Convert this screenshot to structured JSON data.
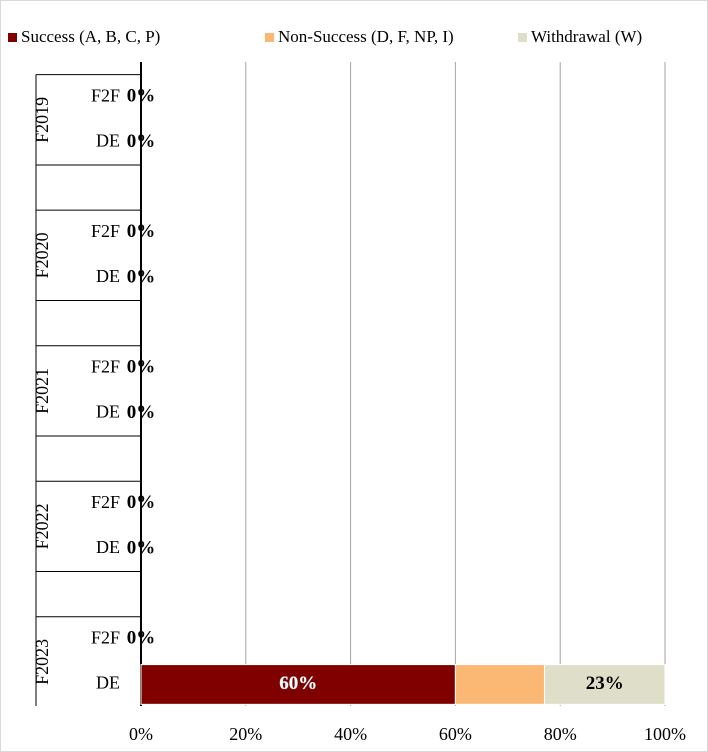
{
  "chart_data": {
    "type": "stacked-bar-horizontal",
    "groups": [
      "F2019",
      "F2020",
      "F2021",
      "F2022",
      "F2023"
    ],
    "categories": [
      "F2F",
      "DE",
      "F2F",
      "DE",
      "F2F",
      "DE",
      "F2F",
      "DE",
      "F2F",
      "DE"
    ],
    "series": [
      {
        "name": "Success (A, B, C, P)",
        "color": "#800000",
        "values": [
          0,
          0,
          0,
          0,
          0,
          0,
          0,
          0,
          0,
          60
        ],
        "value_labels": [
          "0%",
          "0%",
          "0%",
          "0%",
          "0%",
          "0%",
          "0%",
          "0%",
          "0%",
          "60%"
        ]
      },
      {
        "name": "Non-Success (D, F, NP, I)",
        "color": "#fbb874",
        "values": [
          0,
          0,
          0,
          0,
          0,
          0,
          0,
          0,
          0,
          17
        ]
      },
      {
        "name": "Withdrawal (W)",
        "color": "#dfdfc9",
        "values": [
          0,
          0,
          0,
          0,
          0,
          0,
          0,
          0,
          0,
          23
        ],
        "value_labels": [
          null,
          null,
          null,
          null,
          null,
          null,
          null,
          null,
          null,
          "23%"
        ]
      }
    ],
    "xlim": [
      0,
      100
    ],
    "xticks": [
      {
        "value": 0,
        "label": "0%"
      },
      {
        "value": 20,
        "label": "20%"
      },
      {
        "value": 40,
        "label": "40%"
      },
      {
        "value": 60,
        "label": "60%"
      },
      {
        "value": 80,
        "label": "80%"
      },
      {
        "value": 100,
        "label": "100%"
      }
    ],
    "grid": true,
    "legend": "top"
  }
}
